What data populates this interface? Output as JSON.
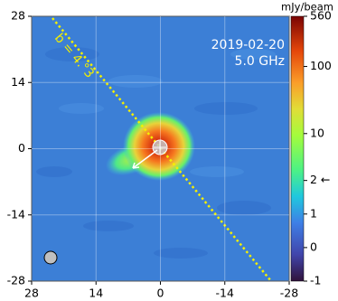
{
  "chart_data": {
    "type": "image",
    "annotations": [
      "2019-02-20",
      "5.0 GHz",
      "b = 4.°3"
    ],
    "xlim": [
      28,
      -28
    ],
    "xticks": [
      28,
      14,
      0,
      -14,
      -28
    ],
    "ylim": [
      -28,
      28
    ],
    "yticks": [
      -28,
      -14,
      0,
      14,
      28
    ],
    "grid": true,
    "colorbar": {
      "label": "mJy/beam",
      "lim": [
        -1,
        560
      ],
      "ticks": [
        -1,
        0,
        1,
        {
          "value": 2,
          "label": "2 ←"
        },
        10,
        100,
        560
      ],
      "scale": "symlog",
      "linthresh": 2
    }
  }
}
